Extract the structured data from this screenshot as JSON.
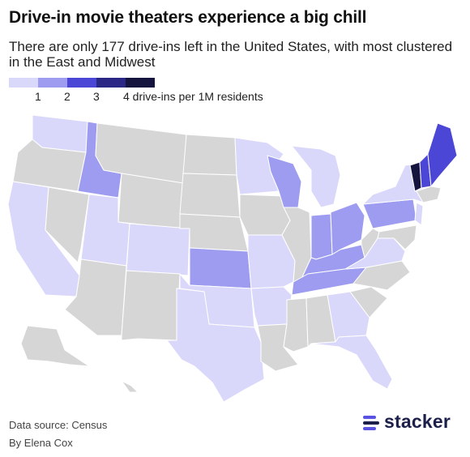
{
  "header": {
    "title": "Drive-in movie theaters experience a big chill",
    "subtitle": "There are only 177 drive-ins left in the United States, with most clustered in the East and Midwest"
  },
  "legend": {
    "colors": [
      "#d9d8fb",
      "#9d9cf0",
      "#4c46d6",
      "#2a2785",
      "#15143f"
    ],
    "ticks": [
      "1",
      "2",
      "3",
      "4 drive-ins per 1M residents"
    ]
  },
  "map_colors": {
    "none": "#d6d6d6",
    "border": "#ffffff"
  },
  "footer": {
    "source": "Data source: Census",
    "author": "By Elena Cox"
  },
  "logo": {
    "text": "stacker",
    "colors": [
      "#5a52e0",
      "#1b1f4a"
    ]
  }
}
